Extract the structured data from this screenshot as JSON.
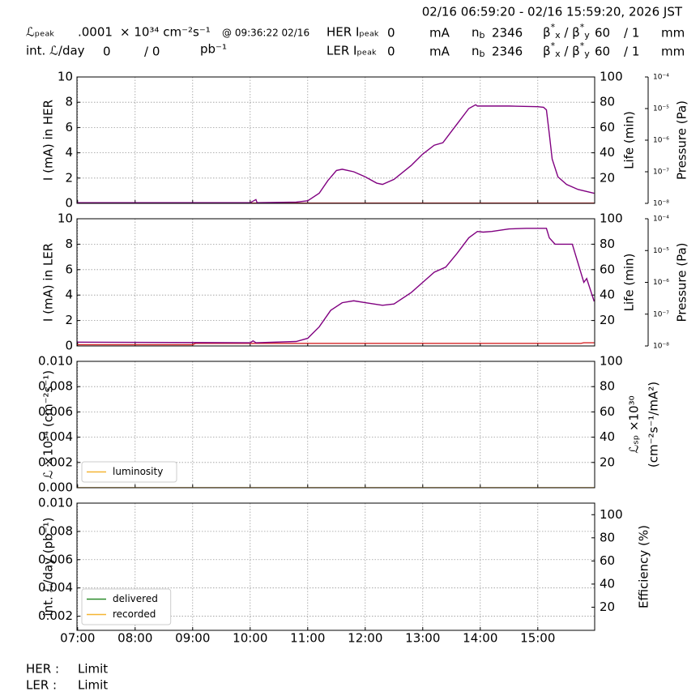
{
  "header": {
    "time_range": "02/16 06:59:20 - 02/16 15:59:20, 2026 JST",
    "lum_peak_label": "ℒₚₑₐₖ",
    "lum_peak_value": ".0001",
    "lum_unit": "× 10³⁴ cm⁻²s⁻¹",
    "lum_peak_time": "@ 09:36:22 02/16",
    "int_lum_label": "int. ℒ/day",
    "int_lum_delivered": "0",
    "int_lum_recorded": "/ 0",
    "int_lum_unit": "pb⁻¹",
    "rings": [
      {
        "label": "HER Iₚₑₐₖ",
        "current": "0",
        "current_unit": "mA",
        "nb_label": [
          "n",
          "b"
        ],
        "nb": "2346",
        "beta_label": [
          "β",
          "*",
          "x",
          " / β",
          "*",
          "y"
        ],
        "beta_x": "60",
        "beta_y": "/ 1",
        "beta_unit": "mm"
      },
      {
        "label": "LER Iₚₑₐₖ",
        "current": "0",
        "current_unit": "mA",
        "nb_label": [
          "n",
          "b"
        ],
        "nb": "2346",
        "beta_label": [
          "β",
          "*",
          "x",
          " / β",
          "*",
          "y"
        ],
        "beta_x": "60",
        "beta_y": "/ 1",
        "beta_unit": "mm"
      }
    ]
  },
  "footer": [
    {
      "label": "HER :",
      "status": "Limit"
    },
    {
      "label": "LER :",
      "status": "Limit"
    }
  ],
  "chart_data": [
    {
      "type": "line",
      "ylabel": "I (mA) in HER",
      "y2label": "Life (min)",
      "y3label": "Pressure (Pa)",
      "grid": true,
      "xlim": [
        6.9889,
        15.9889
      ],
      "xticks": [
        7,
        8,
        9,
        10,
        11,
        12,
        13,
        14,
        15
      ],
      "ylim": [
        0,
        10
      ],
      "yticks": [
        0,
        2,
        4,
        6,
        8,
        10
      ],
      "y2lim": [
        0,
        100
      ],
      "y2ticks": [
        20,
        40,
        60,
        80,
        100
      ],
      "y3lim": [
        1e-08,
        0.0001
      ],
      "y3log": true,
      "y3ticks": [
        {
          "value": 1e-08,
          "label": "10⁻⁸"
        },
        {
          "value": 1e-07,
          "label": "10⁻⁷"
        },
        {
          "value": 1e-06,
          "label": "10⁻⁶"
        },
        {
          "value": 1e-05,
          "label": "10⁻⁵"
        },
        {
          "value": 0.0001,
          "label": "10⁻⁴"
        }
      ],
      "series": [
        {
          "color": "#d62728",
          "x": [
            6.99,
            15.98
          ],
          "values": [
            0.02,
            0.02
          ]
        },
        {
          "color": "#800080",
          "x": [
            6.99,
            8.0,
            9.0,
            10.0,
            10.1,
            10.12,
            10.8,
            11.0,
            11.2,
            11.35,
            11.5,
            11.6,
            11.8,
            12.0,
            12.2,
            12.3,
            12.5,
            12.8,
            13.0,
            13.2,
            13.35,
            13.5,
            13.65,
            13.8,
            13.92,
            13.95,
            14.5,
            15.0,
            15.1,
            15.15,
            15.2,
            15.25,
            15.35,
            15.5,
            15.7,
            15.98
          ],
          "values": [
            0.05,
            0.05,
            0.05,
            0.05,
            0.3,
            0.05,
            0.1,
            0.2,
            0.8,
            1.8,
            2.6,
            2.7,
            2.5,
            2.1,
            1.6,
            1.5,
            1.9,
            3.0,
            3.9,
            4.6,
            4.8,
            5.7,
            6.6,
            7.5,
            7.8,
            7.7,
            7.7,
            7.65,
            7.6,
            7.4,
            5.5,
            3.5,
            2.1,
            1.5,
            1.1,
            0.8
          ]
        }
      ]
    },
    {
      "type": "line",
      "ylabel": "I (mA) in LER",
      "y2label": "Life (min)",
      "y3label": "Pressure (Pa)",
      "grid": true,
      "xlim": [
        6.9889,
        15.9889
      ],
      "xticks": [
        7,
        8,
        9,
        10,
        11,
        12,
        13,
        14,
        15
      ],
      "ylim": [
        0,
        10
      ],
      "yticks": [
        0,
        2,
        4,
        6,
        8,
        10
      ],
      "y2lim": [
        0,
        100
      ],
      "y2ticks": [
        20,
        40,
        60,
        80,
        100
      ],
      "y3lim": [
        1e-08,
        0.0001
      ],
      "y3log": true,
      "y3ticks": [
        {
          "value": 1e-08,
          "label": "10⁻⁸"
        },
        {
          "value": 1e-07,
          "label": "10⁻⁷"
        },
        {
          "value": 1e-06,
          "label": "10⁻⁶"
        },
        {
          "value": 1e-05,
          "label": "10⁻⁵"
        },
        {
          "value": 0.0001,
          "label": "10⁻⁴"
        }
      ],
      "series": [
        {
          "color": "#d62728",
          "x": [
            6.99,
            9.0,
            9.05,
            15.75,
            15.8,
            15.98
          ],
          "values": [
            0.1,
            0.1,
            0.2,
            0.2,
            0.25,
            0.25
          ]
        },
        {
          "color": "#800080",
          "x": [
            6.99,
            10.0,
            10.05,
            10.1,
            10.8,
            11.0,
            11.2,
            11.4,
            11.6,
            11.8,
            12.0,
            12.3,
            12.5,
            12.8,
            13.0,
            13.2,
            13.4,
            13.6,
            13.8,
            13.95,
            14.05,
            14.2,
            14.5,
            14.8,
            15.15,
            15.2,
            15.3,
            15.6,
            15.7,
            15.8,
            15.85,
            15.98
          ],
          "values": [
            0.3,
            0.25,
            0.4,
            0.25,
            0.35,
            0.6,
            1.5,
            2.8,
            3.4,
            3.55,
            3.4,
            3.2,
            3.3,
            4.2,
            5.0,
            5.8,
            6.2,
            7.3,
            8.5,
            9.0,
            8.95,
            9.0,
            9.2,
            9.25,
            9.25,
            8.5,
            8.0,
            8.0,
            6.5,
            5.0,
            5.3,
            3.5
          ]
        }
      ]
    },
    {
      "type": "line",
      "ylabel": "ℒ ×10³⁴ (cm⁻²s⁻¹)",
      "y2label": [
        "ℒₛₚ ×10³⁰",
        "(cm⁻²s⁻¹/mA²)"
      ],
      "grid": true,
      "legend": "lower left",
      "xlim": [
        6.9889,
        15.9889
      ],
      "xticks": [
        7,
        8,
        9,
        10,
        11,
        12,
        13,
        14,
        15
      ],
      "ylim": [
        0,
        0.01
      ],
      "yticks": [
        {
          "value": 0,
          "label": "0.000"
        },
        0.002,
        0.004,
        0.006,
        0.008,
        {
          "value": 0.01,
          "label": "0.010"
        }
      ],
      "y2lim": [
        0,
        100
      ],
      "y2ticks": [
        20,
        40,
        60,
        80,
        100
      ],
      "series": [
        {
          "name": "luminosity",
          "color": "#f5b533",
          "x": [
            6.99,
            15.98
          ],
          "values": [
            0,
            0
          ]
        }
      ]
    },
    {
      "type": "line",
      "ylabel": "int. ℒ/day (pb⁻¹)",
      "y2label": "Efficiency (%)",
      "grid": true,
      "legend": "lower left",
      "xlim": [
        6.9889,
        15.9889
      ],
      "xticks": [
        {
          "value": 7,
          "label": "07:00"
        },
        {
          "value": 8,
          "label": "08:00"
        },
        {
          "value": 9,
          "label": "09:00"
        },
        {
          "value": 10,
          "label": "10:00"
        },
        {
          "value": 11,
          "label": "11:00"
        },
        {
          "value": 12,
          "label": "12:00"
        },
        {
          "value": 13,
          "label": "13:00"
        },
        {
          "value": 14,
          "label": "14:00"
        },
        {
          "value": 15,
          "label": "15:00"
        }
      ],
      "ylim": [
        0.001,
        0.01
      ],
      "yticks": [
        0.002,
        0.004,
        0.006,
        0.008,
        {
          "value": 0.01,
          "label": "0.010"
        }
      ],
      "y2lim": [
        0,
        110
      ],
      "y2ticks": [
        20,
        40,
        60,
        80,
        100
      ],
      "series": [
        {
          "name": "delivered",
          "color": "#2a8a2a",
          "x": [
            6.99,
            15.98
          ],
          "values": [
            0,
            0
          ]
        },
        {
          "name": "recorded",
          "color": "#f5b533",
          "x": [
            6.99,
            15.98
          ],
          "values": [
            0,
            0
          ]
        }
      ]
    }
  ]
}
